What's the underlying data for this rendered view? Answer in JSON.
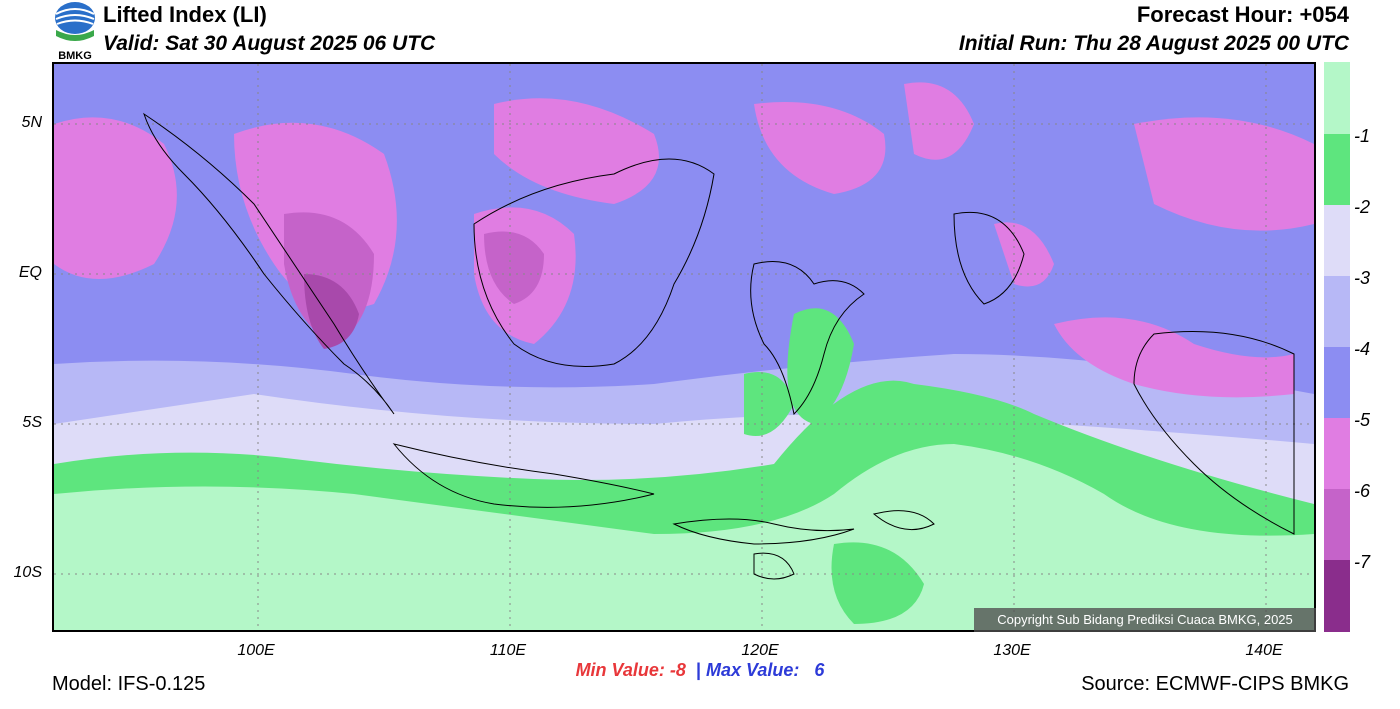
{
  "header": {
    "title": "Lifted Index (LI)",
    "valid": "Valid: Sat 30 August 2025 06 UTC",
    "forecast_hour": "Forecast Hour: +054",
    "initial_run": "Initial Run: Thu 28 August 2025 00 UTC",
    "logo_text": "BMKG"
  },
  "axes": {
    "lat_labels": [
      "5N",
      "EQ",
      "5S",
      "10S"
    ],
    "lon_labels": [
      "100E",
      "110E",
      "120E",
      "130E",
      "140E"
    ]
  },
  "colorbar": {
    "labels": [
      "-1",
      "-2",
      "-3",
      "-4",
      "-5",
      "-6",
      "-7"
    ],
    "colors": [
      "#b4f7c8",
      "#5ee57e",
      "#dedcf8",
      "#b7b8f6",
      "#8c8df2",
      "#e07de2",
      "#c563c9",
      "#a849ab",
      "#8a2d8c"
    ]
  },
  "stats": {
    "min_label": "Min Value:",
    "min_value": "-8",
    "separator": "|",
    "max_label": "Max Value:",
    "max_value": "6"
  },
  "footer": {
    "model": "Model: IFS-0.125",
    "source": "Source: ECMWF-CIPS BMKG",
    "copyright": "Copyright Sub Bidang Prediksi Cuaca BMKG, 2025"
  }
}
